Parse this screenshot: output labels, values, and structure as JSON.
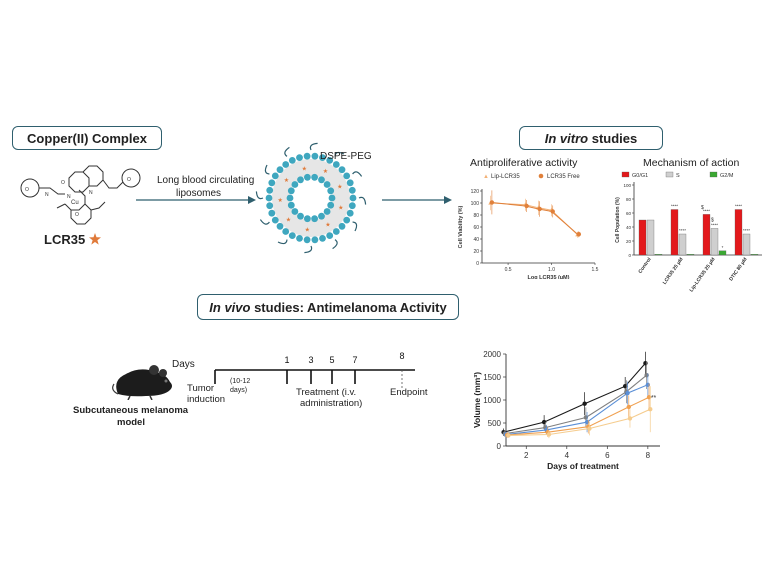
{
  "sections": {
    "copper_title": "Copper(II)  Complex",
    "invitro_italic": "In vitro",
    "invitro_rest": " studies",
    "invivo_italic": "In vivo",
    "invivo_rest": " studies: Antimelanoma Activity"
  },
  "molecule": {
    "name": "LCR35",
    "metal": "Cu"
  },
  "liposome": {
    "label": "DSPE-PEG",
    "arrow_label_line1": "Long blood circulating",
    "arrow_label_line2": "liposomes"
  },
  "colors": {
    "box_border": "#2f5f6e",
    "lipo_orange": "#f3b277",
    "free_orange": "#e0803a",
    "g0g1": "#e3191c",
    "s_phase": "#cfcfcf",
    "g2m": "#3aa832",
    "star": "#e07a3a"
  },
  "antiproliferative": {
    "title": "Antiproliferative activity",
    "legend": [
      "Lip-LCR35",
      "LCR35 Free"
    ],
    "ylabel": "Cell Viability (%)",
    "xlabel": "Log LCR35 (µM)",
    "yticks": [
      "0",
      "20",
      "40",
      "60",
      "80",
      "100",
      "120"
    ],
    "xticks": [
      "0.5",
      "1.0",
      "1.5"
    ]
  },
  "mechanism": {
    "title": "Mechanism of action",
    "legend": [
      "G0/G1",
      "S",
      "G2/M"
    ],
    "ylabel": "Cell Population (%)",
    "yticks": [
      "0",
      "20",
      "40",
      "60",
      "80",
      "100"
    ],
    "categories": [
      "Control",
      "LCR35 25 µM",
      "Lip-LCR35 25 µM",
      "DTIC 80 µM"
    ],
    "sig_g0g1": [
      "",
      "****",
      "****",
      "****"
    ],
    "sig_s": [
      "",
      "****",
      "****",
      "****"
    ],
    "sig_g2m": [
      "",
      "",
      "*",
      ""
    ],
    "sig_extra": [
      "$",
      "$"
    ]
  },
  "timeline": {
    "days_label": "Days",
    "days": [
      "1",
      "3",
      "5",
      "7",
      "8"
    ],
    "tumor_induction": [
      "Tumor",
      "induction"
    ],
    "interval": [
      "(10-12",
      "days)"
    ],
    "treatment": [
      "Treatment (i.v.",
      "administration)"
    ],
    "endpoint": "Endpoint",
    "model_label": [
      "Subcutaneous melanoma",
      "model"
    ]
  },
  "chart_data": [
    {
      "type": "line",
      "title": "Antiproliferative activity",
      "xlabel": "Log LCR35 (µM)",
      "ylabel": "Cell Viability (%)",
      "xlim": [
        0.2,
        1.5
      ],
      "ylim": [
        0,
        120
      ],
      "legend": "top",
      "series": [
        {
          "name": "Lip-LCR35",
          "x": [
            0.3,
            0.7,
            0.85,
            1.0,
            1.3
          ],
          "y": [
            100,
            97,
            92,
            88,
            47
          ],
          "err": [
            12,
            10,
            12,
            10,
            5
          ]
        },
        {
          "name": "LCR35 Free",
          "x": [
            0.3,
            0.7,
            0.85,
            1.0,
            1.3
          ],
          "y": [
            101,
            95,
            90,
            86,
            48
          ],
          "err": [
            20,
            10,
            13,
            10,
            5
          ]
        }
      ]
    },
    {
      "type": "bar",
      "title": "Mechanism of action",
      "ylabel": "Cell Population (%)",
      "ylim": [
        0,
        100
      ],
      "legend": "top",
      "categories": [
        "Control",
        "LCR35 25 µM",
        "Lip-LCR35 25 µM",
        "DTIC 80 µM"
      ],
      "series": [
        {
          "name": "G0/G1",
          "values": [
            50,
            65,
            58,
            65
          ]
        },
        {
          "name": "S",
          "values": [
            50,
            30,
            38,
            30
          ]
        },
        {
          "name": "G2/M",
          "values": [
            1,
            1,
            6,
            1
          ]
        }
      ]
    },
    {
      "type": "line",
      "xlabel": "Days of treatment",
      "ylabel": "Volume (mm³)",
      "xlim": [
        1,
        8.6
      ],
      "ylim": [
        0,
        2000
      ],
      "xticks": [
        2,
        4,
        6,
        8
      ],
      "yticks": [
        0,
        500,
        1000,
        1500,
        2000
      ],
      "series": [
        {
          "x": [
            1,
            3,
            5,
            7,
            8
          ],
          "y": [
            300,
            520,
            920,
            1300,
            1800
          ],
          "err": [
            80,
            150,
            250,
            200,
            250
          ],
          "color": "#1a1a1a"
        },
        {
          "x": [
            1,
            3,
            5,
            7,
            8
          ],
          "y": [
            270,
            400,
            620,
            1180,
            1540
          ],
          "err": [
            70,
            120,
            220,
            250,
            300
          ],
          "color": "#7f7f7f"
        },
        {
          "x": [
            1,
            3,
            5,
            7,
            8
          ],
          "y": [
            250,
            350,
            520,
            1150,
            1330
          ],
          "err": [
            60,
            110,
            220,
            250,
            250
          ],
          "color": "#5b8fd6"
        },
        {
          "x": [
            1,
            3,
            5,
            7,
            8
          ],
          "y": [
            240,
            300,
            420,
            850,
            1060
          ],
          "err": [
            60,
            100,
            150,
            250,
            300
          ],
          "color": "#f0a050"
        },
        {
          "x": [
            1,
            3,
            5,
            7,
            8
          ],
          "y": [
            230,
            250,
            380,
            600,
            800
          ],
          "err": [
            50,
            80,
            150,
            200,
            500
          ],
          "color": "#f5cc8e"
        }
      ],
      "annotations": [
        "**"
      ]
    }
  ]
}
